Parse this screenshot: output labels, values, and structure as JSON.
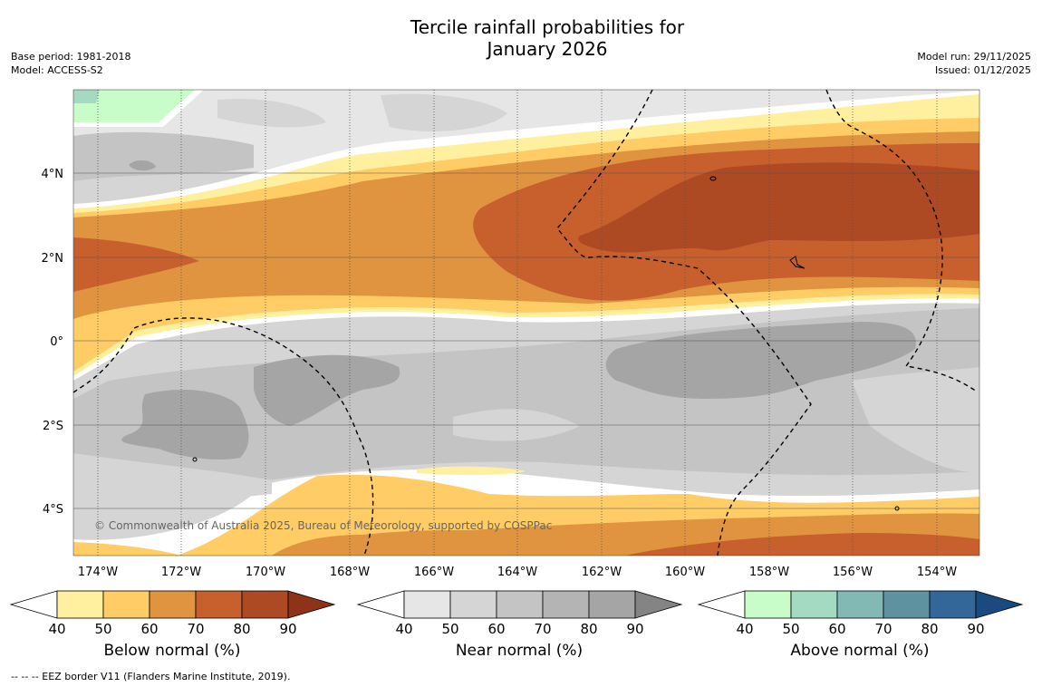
{
  "title": {
    "line1": "Tercile rainfall probabilities for",
    "line2": "January 2026"
  },
  "meta": {
    "base_period": "Base period: 1981-2018",
    "model": "Model: ACCESS-S2",
    "model_run": "Model run: 29/11/2025",
    "issued": "Issued: 01/12/2025"
  },
  "map": {
    "x_ticks": [
      "174°W",
      "172°W",
      "170°W",
      "168°W",
      "166°W",
      "164°W",
      "162°W",
      "160°W",
      "158°W",
      "156°W",
      "154°W"
    ],
    "y_ticks": [
      "4°N",
      "2°N",
      "0°",
      "2°S",
      "4°S"
    ],
    "copyright": "© Commonwealth of Australia 2025, Bureau of Meteorology, supported by COSPPac"
  },
  "colorbars": [
    {
      "label": "Below normal (%)",
      "ticks": [
        "40",
        "50",
        "60",
        "70",
        "80",
        "90"
      ],
      "colors": [
        "#fff0a0",
        "#ffcc66",
        "#e0943f",
        "#c8602e",
        "#ad4a24",
        "#8f3318"
      ]
    },
    {
      "label": "Near normal (%)",
      "ticks": [
        "40",
        "50",
        "60",
        "70",
        "80",
        "90"
      ],
      "colors": [
        "#e6e6e6",
        "#d5d5d5",
        "#c4c4c4",
        "#b4b4b4",
        "#a5a5a5",
        "#848484"
      ]
    },
    {
      "label": "Above normal (%)",
      "ticks": [
        "40",
        "50",
        "60",
        "70",
        "80",
        "90"
      ],
      "colors": [
        "#c8fcc8",
        "#a3dac1",
        "#82b9b4",
        "#5e92a0",
        "#336699",
        "#1a4a80"
      ]
    }
  ],
  "footnote": "--  --  -- EEZ border V11 (Flanders Marine Institute, 2019).",
  "colors": {
    "ocean_white": "#ffffff",
    "grid": "#555555"
  }
}
